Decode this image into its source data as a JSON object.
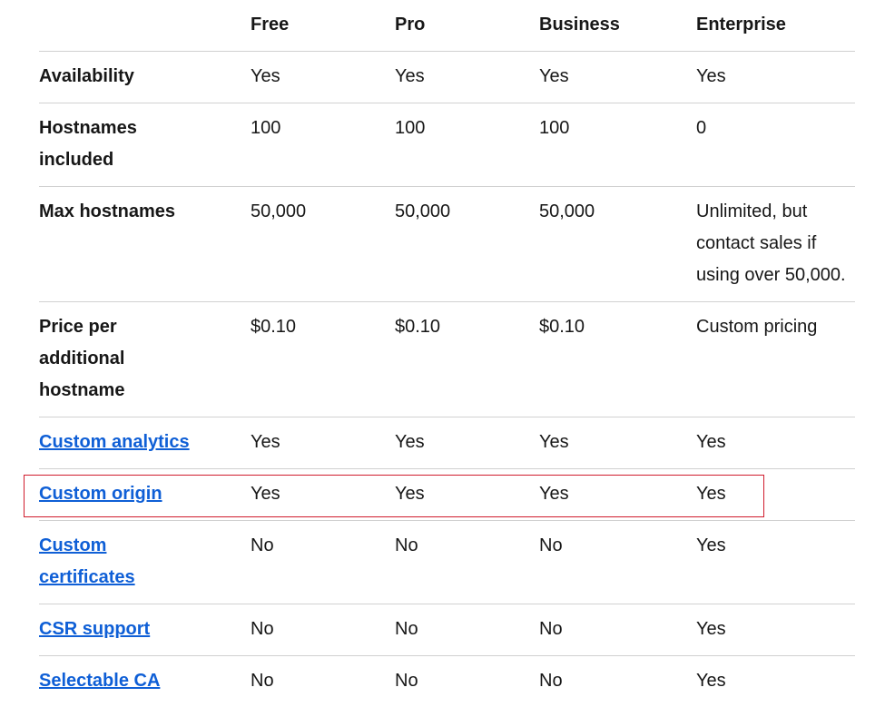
{
  "table": {
    "columns": [
      "Free",
      "Pro",
      "Business",
      "Enterprise"
    ],
    "rows": [
      {
        "label": "Availability",
        "cells": [
          "Yes",
          "Yes",
          "Yes",
          "Yes"
        ]
      },
      {
        "label": "Hostnames included",
        "cells": [
          "100",
          "100",
          "100",
          "0"
        ]
      },
      {
        "label": "Max hostnames",
        "cells": [
          "50,000",
          "50,000",
          "50,000",
          "Unlimited, but contact sales if using over 50,000."
        ]
      },
      {
        "label": "Price per additional hostname",
        "cells": [
          "$0.10",
          "$0.10",
          "$0.10",
          "Custom pricing"
        ]
      },
      {
        "label": "Custom analytics",
        "link": true,
        "cells": [
          "Yes",
          "Yes",
          "Yes",
          "Yes"
        ]
      },
      {
        "label": "Custom origin",
        "link": true,
        "highlighted": true,
        "cells": [
          "Yes",
          "Yes",
          "Yes",
          "Yes"
        ]
      },
      {
        "label": "Custom certificates",
        "link": true,
        "cells": [
          "No",
          "No",
          "No",
          "Yes"
        ]
      },
      {
        "label": "CSR support",
        "link": true,
        "cells": [
          "No",
          "No",
          "No",
          "Yes"
        ]
      },
      {
        "label": "Selectable CA",
        "link": true,
        "cells": [
          "No",
          "No",
          "No",
          "Yes"
        ]
      }
    ]
  }
}
